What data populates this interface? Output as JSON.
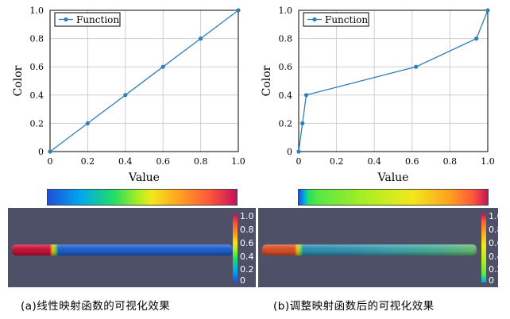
{
  "chart_data": [
    {
      "type": "line",
      "xlabel": "Value",
      "ylabel": "Color",
      "xlim": [
        0,
        1
      ],
      "ylim": [
        0,
        1
      ],
      "xticks": [
        "0",
        "0.2",
        "0.4",
        "0.6",
        "0.8",
        "1.0"
      ],
      "yticks": [
        "0",
        "0.2",
        "0.4",
        "0.6",
        "0.8",
        "1.0"
      ],
      "grid": true,
      "legend_position": "top-left",
      "series": [
        {
          "name": "Function",
          "color": "#2f7fb8",
          "x": [
            0,
            0.2,
            0.4,
            0.6,
            0.8,
            1.0
          ],
          "y": [
            0,
            0.2,
            0.4,
            0.6,
            0.8,
            1.0
          ]
        }
      ]
    },
    {
      "type": "line",
      "xlabel": "Value",
      "ylabel": "Color",
      "xlim": [
        0,
        1
      ],
      "ylim": [
        0,
        1
      ],
      "xticks": [
        "0",
        "0.2",
        "0.4",
        "0.6",
        "0.8",
        "1.0"
      ],
      "yticks": [
        "0",
        "0.2",
        "0.4",
        "0.6",
        "0.8",
        "1.0"
      ],
      "grid": true,
      "legend_position": "top-left",
      "series": [
        {
          "name": "Function",
          "color": "#2f7fb8",
          "x": [
            0,
            0.02,
            0.04,
            0.62,
            0.94,
            1.0
          ],
          "y": [
            0,
            0.2,
            0.4,
            0.6,
            0.8,
            1.0
          ]
        }
      ]
    }
  ],
  "colorbar_labels": [
    "1.0",
    "0.8",
    "0.6",
    "0.4",
    "0.2",
    "0"
  ],
  "colors": {
    "render_background": "#4e5068",
    "rod_left_end": "#c8143c",
    "rod_body": "#1f5fd0",
    "rod_right_end": "#d8502a",
    "rod_right_body": "#3fa0a8"
  },
  "captions": {
    "left": "(a)线性映射函数的可视化效果",
    "right": "(b)调整映射函数后的可视化效果"
  }
}
